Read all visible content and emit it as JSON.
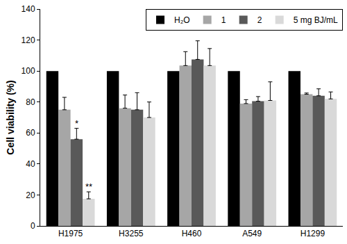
{
  "chart_data": {
    "type": "bar",
    "y_label": "Cell viability (%)",
    "categories": [
      "H1975",
      "H3255",
      "H460",
      "A549",
      "H1299"
    ],
    "series": [
      {
        "name": "H₂O",
        "color": "#000000",
        "values": [
          100,
          100,
          100,
          100,
          100
        ]
      },
      {
        "name": "1",
        "color": "#a6a6a6",
        "values": [
          75,
          76,
          103.5,
          79,
          85
        ],
        "error": [
          8,
          8.5,
          9,
          2.5,
          0.8
        ]
      },
      {
        "name": "2",
        "color": "#595959",
        "values": [
          56,
          75,
          107.5,
          80.5,
          84
        ],
        "error": [
          7,
          11,
          12,
          3,
          4.5
        ]
      },
      {
        "name": "5 mg BJ/mL",
        "color": "#d9d9d9",
        "values": [
          17.5,
          70,
          103.5,
          81,
          82
        ],
        "error": [
          4.5,
          10,
          11,
          12,
          4.5
        ]
      }
    ],
    "annotations": [
      {
        "text": "*",
        "category": "H1975",
        "series": "2"
      },
      {
        "text": "**",
        "category": "H1975",
        "series": "5 mg BJ/mL"
      }
    ],
    "ylim": [
      0,
      140
    ],
    "yticks": [
      0,
      20,
      40,
      60,
      80,
      100,
      120,
      140
    ],
    "grid": false,
    "legend": "top"
  }
}
